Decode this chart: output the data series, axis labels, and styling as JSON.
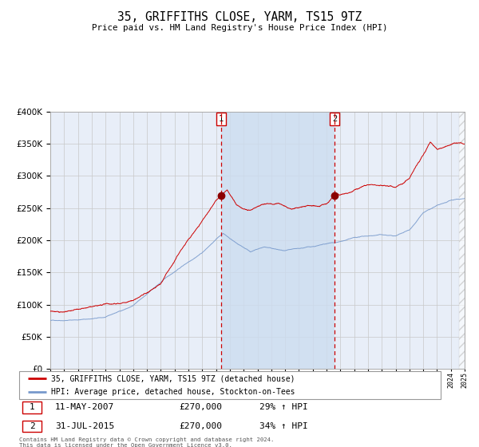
{
  "title": "35, GRIFFITHS CLOSE, YARM, TS15 9TZ",
  "subtitle": "Price paid vs. HM Land Registry's House Price Index (HPI)",
  "red_label": "35, GRIFFITHS CLOSE, YARM, TS15 9TZ (detached house)",
  "blue_label": "HPI: Average price, detached house, Stockton-on-Tees",
  "transaction1_date": "11-MAY-2007",
  "transaction1_price": 270000,
  "transaction1_hpi": "29% ↑ HPI",
  "transaction2_date": "31-JUL-2015",
  "transaction2_price": 270000,
  "transaction2_hpi": "34% ↑ HPI",
  "transaction1_year": 2007.36,
  "transaction2_year": 2015.58,
  "ylim": [
    0,
    400000
  ],
  "xlim_start": 1995,
  "xlim_end": 2025,
  "footer": "Contains HM Land Registry data © Crown copyright and database right 2024.\nThis data is licensed under the Open Government Licence v3.0.",
  "background_color": "#ffffff",
  "plot_bg_color": "#e8eef8",
  "grid_color": "#c8c8c8",
  "red_color": "#cc0000",
  "blue_color": "#7799cc",
  "marker_color": "#8b0000",
  "shading_color": "#ccddf0",
  "hatch_color": "#bbbbbb"
}
